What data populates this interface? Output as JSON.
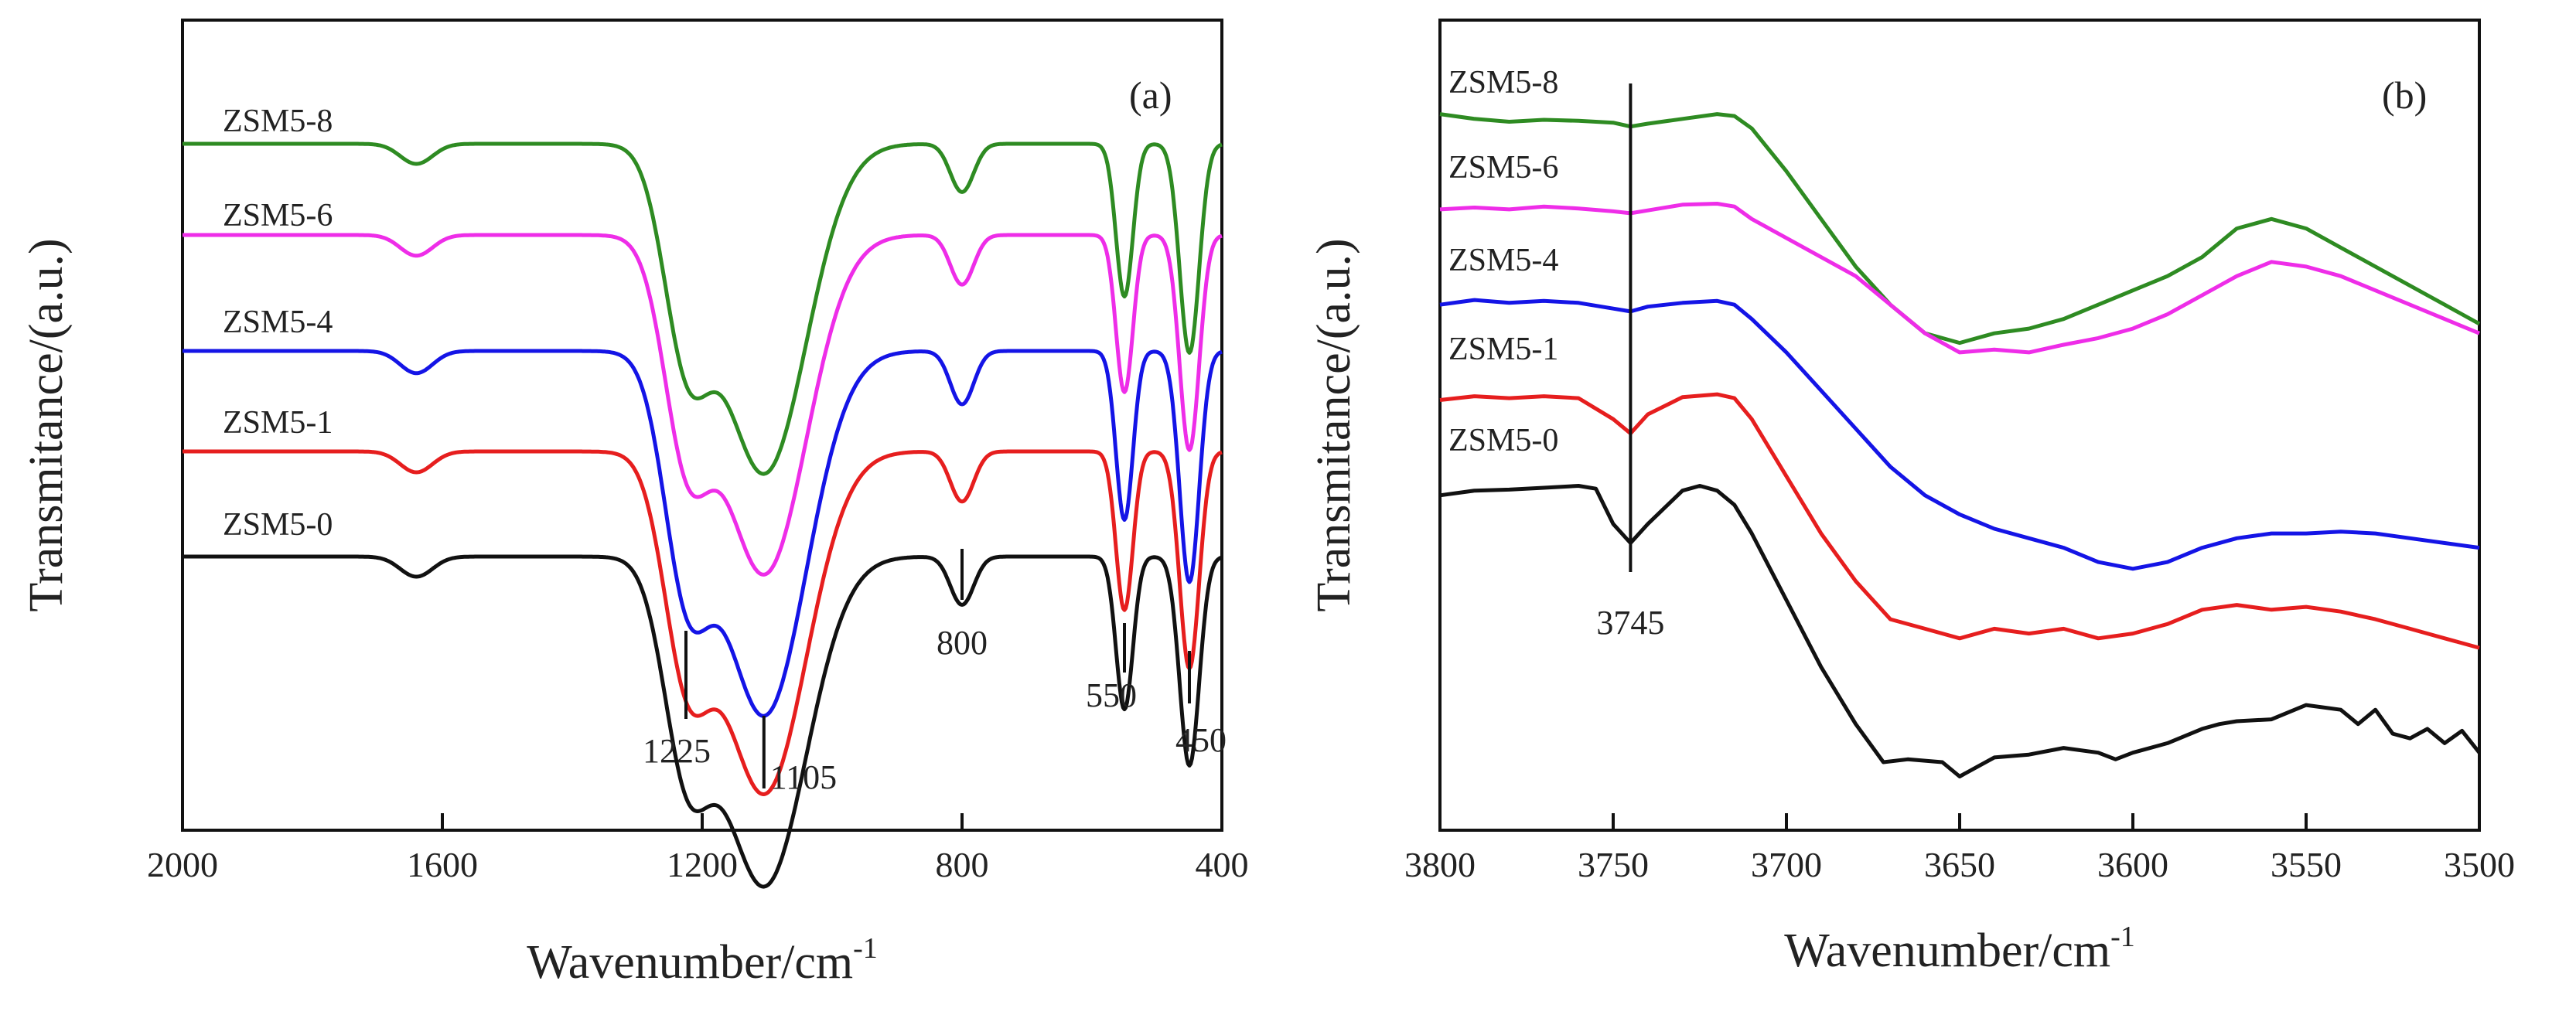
{
  "chart_data": [
    {
      "panel": "(a)",
      "type": "line",
      "xlabel": "Wavenumber/cm",
      "xlabel_sup": "-1",
      "ylabel": "Transmitance/(a.u.)",
      "xlim": [
        2000,
        400
      ],
      "xticks": [
        2000,
        1600,
        1200,
        800,
        400
      ],
      "series": [
        {
          "name": "ZSM5-8",
          "color": "#2e8b22",
          "offset": 0
        },
        {
          "name": "ZSM5-6",
          "color": "#ee2de8",
          "offset": 1
        },
        {
          "name": "ZSM5-4",
          "color": "#1414e6",
          "offset": 2
        },
        {
          "name": "ZSM5-1",
          "color": "#e61e1e",
          "offset": 3
        },
        {
          "name": "ZSM5-0",
          "color": "#111111",
          "offset": 4
        }
      ],
      "bands": [
        {
          "center": 1640,
          "width": 25,
          "depth": 0.05
        },
        {
          "center": 1225,
          "width": 35,
          "depth": 0.45
        },
        {
          "center": 1105,
          "width": 65,
          "depth": 0.82
        },
        {
          "center": 800,
          "width": 18,
          "depth": 0.12
        },
        {
          "center": 550,
          "width": 13,
          "depth": 0.38
        },
        {
          "center": 450,
          "width": 15,
          "depth": 0.52
        }
      ],
      "annotations": [
        "1225",
        "1105",
        "800",
        "550",
        "450"
      ],
      "annotation_x": [
        1225,
        1105,
        800,
        550,
        450
      ]
    },
    {
      "panel": "(b)",
      "type": "line",
      "xlabel": "Wavenumber/cm",
      "xlabel_sup": "-1",
      "ylabel": "Transmitance/(a.u.)",
      "xlim": [
        3800,
        3500
      ],
      "xticks": [
        3800,
        3750,
        3700,
        3650,
        3600,
        3550,
        3500
      ],
      "series": [
        {
          "name": "ZSM5-8",
          "color": "#2e8b22",
          "x": [
            3800,
            3790,
            3780,
            3770,
            3760,
            3750,
            3745,
            3740,
            3730,
            3720,
            3715,
            3710,
            3700,
            3690,
            3680,
            3670,
            3660,
            3650,
            3640,
            3630,
            3620,
            3610,
            3600,
            3590,
            3580,
            3570,
            3560,
            3550,
            3540,
            3530,
            3520,
            3510,
            3500
          ],
          "y": [
            100,
            99.5,
            99.2,
            99.4,
            99.3,
            99.1,
            98.7,
            99.0,
            99.5,
            100,
            99.8,
            98.5,
            94,
            89,
            84,
            80,
            77,
            76,
            77,
            77.5,
            78.5,
            80,
            81.5,
            83,
            85,
            88,
            89,
            88,
            86,
            84,
            82,
            80,
            78
          ]
        },
        {
          "name": "ZSM5-6",
          "color": "#ee2de8",
          "x": [
            3800,
            3790,
            3780,
            3770,
            3760,
            3750,
            3745,
            3740,
            3730,
            3720,
            3715,
            3710,
            3700,
            3690,
            3680,
            3670,
            3660,
            3650,
            3640,
            3630,
            3620,
            3610,
            3600,
            3590,
            3580,
            3570,
            3560,
            3550,
            3540,
            3530,
            3520,
            3510,
            3500
          ],
          "y": [
            90,
            90.2,
            90,
            90.3,
            90.1,
            89.8,
            89.6,
            89.9,
            90.5,
            90.6,
            90.3,
            89,
            87,
            85,
            83,
            80,
            77,
            75,
            75.3,
            75,
            75.8,
            76.5,
            77.5,
            79,
            81,
            83,
            84.5,
            84,
            83,
            81.5,
            80,
            78.5,
            77
          ]
        },
        {
          "name": "ZSM5-4",
          "color": "#1414e6",
          "x": [
            3800,
            3790,
            3780,
            3770,
            3760,
            3750,
            3745,
            3740,
            3730,
            3720,
            3715,
            3710,
            3700,
            3690,
            3680,
            3670,
            3660,
            3650,
            3640,
            3630,
            3620,
            3610,
            3600,
            3590,
            3580,
            3570,
            3560,
            3550,
            3540,
            3530,
            3520,
            3510,
            3500
          ],
          "y": [
            80,
            80.5,
            80.2,
            80.4,
            80.2,
            79.6,
            79.3,
            79.8,
            80.2,
            80.4,
            80.0,
            78.5,
            75,
            71,
            67,
            63,
            60,
            58,
            56.5,
            55.5,
            54.5,
            53,
            52.3,
            53,
            54.5,
            55.5,
            56,
            56,
            56.2,
            56,
            55.5,
            55,
            54.5
          ]
        },
        {
          "name": "ZSM5-1",
          "color": "#e61e1e",
          "x": [
            3800,
            3790,
            3780,
            3770,
            3760,
            3750,
            3745,
            3740,
            3730,
            3720,
            3715,
            3710,
            3700,
            3690,
            3680,
            3670,
            3660,
            3650,
            3640,
            3630,
            3620,
            3610,
            3600,
            3590,
            3580,
            3570,
            3560,
            3550,
            3540,
            3530,
            3520,
            3510,
            3500
          ],
          "y": [
            70,
            70.4,
            70.2,
            70.4,
            70.2,
            68,
            66.5,
            68.5,
            70.3,
            70.6,
            70.2,
            68,
            62,
            56,
            51,
            47,
            46,
            45,
            46,
            45.5,
            46,
            45,
            45.5,
            46.5,
            48,
            48.5,
            48,
            48.3,
            47.8,
            47,
            46,
            45,
            44
          ]
        },
        {
          "name": "ZSM5-0",
          "color": "#111111",
          "x": [
            3800,
            3790,
            3780,
            3770,
            3760,
            3755,
            3750,
            3745,
            3740,
            3730,
            3725,
            3720,
            3715,
            3710,
            3700,
            3690,
            3680,
            3672,
            3665,
            3655,
            3650,
            3645,
            3640,
            3630,
            3620,
            3610,
            3605,
            3600,
            3590,
            3580,
            3575,
            3570,
            3560,
            3550,
            3540,
            3535,
            3530,
            3525,
            3520,
            3515,
            3510,
            3505,
            3500
          ],
          "y": [
            60,
            60.5,
            60.6,
            60.8,
            61,
            60.7,
            57,
            55,
            57,
            60.5,
            61,
            60.5,
            59,
            56,
            49,
            42,
            36,
            32,
            32.3,
            32,
            30.5,
            31.5,
            32.5,
            32.8,
            33.5,
            33,
            32.3,
            33,
            34,
            35.5,
            36,
            36.3,
            36.5,
            38,
            37.5,
            36,
            37.5,
            35,
            34.5,
            35.5,
            34,
            35.3,
            33
          ]
        }
      ],
      "annotations": [
        "3745"
      ],
      "annotation_x": [
        3745
      ]
    }
  ]
}
